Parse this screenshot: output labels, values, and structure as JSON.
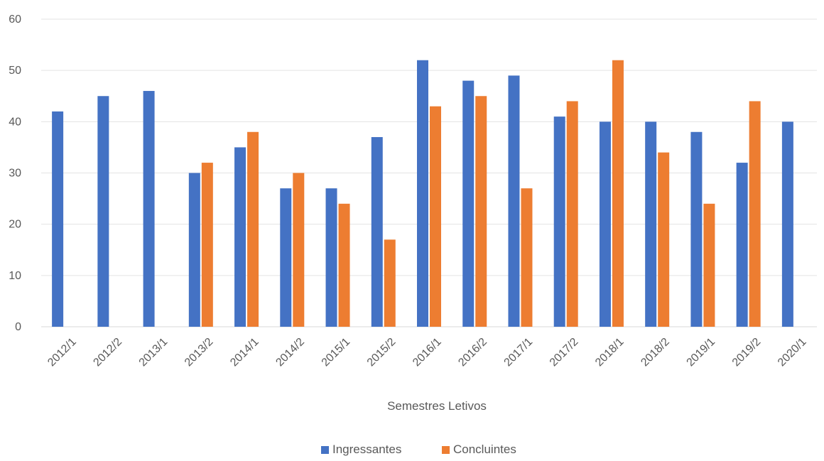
{
  "chart_data": {
    "type": "bar",
    "categories": [
      "2012/1",
      "2012/2",
      "2013/1",
      "2013/2",
      "2014/1",
      "2014/2",
      "2015/1",
      "2015/2",
      "2016/1",
      "2016/2",
      "2017/1",
      "2017/2",
      "2018/1",
      "2018/2",
      "2019/1",
      "2019/2",
      "2020/1"
    ],
    "series": [
      {
        "name": "Ingressantes",
        "color": "#4472C4",
        "values": [
          42,
          45,
          46,
          30,
          35,
          27,
          27,
          37,
          52,
          48,
          49,
          41,
          40,
          40,
          38,
          32,
          40
        ]
      },
      {
        "name": "Concluintes",
        "color": "#ED7D31",
        "values": [
          null,
          null,
          null,
          32,
          38,
          30,
          24,
          17,
          43,
          45,
          27,
          44,
          52,
          34,
          24,
          44,
          null
        ]
      }
    ],
    "title": "",
    "xlabel": "Semestres Letivos",
    "ylabel": "",
    "ylim": [
      0,
      60
    ],
    "yticks": [
      0,
      10,
      20,
      30,
      40,
      50,
      60
    ],
    "grid": true,
    "legend_position": "bottom"
  }
}
